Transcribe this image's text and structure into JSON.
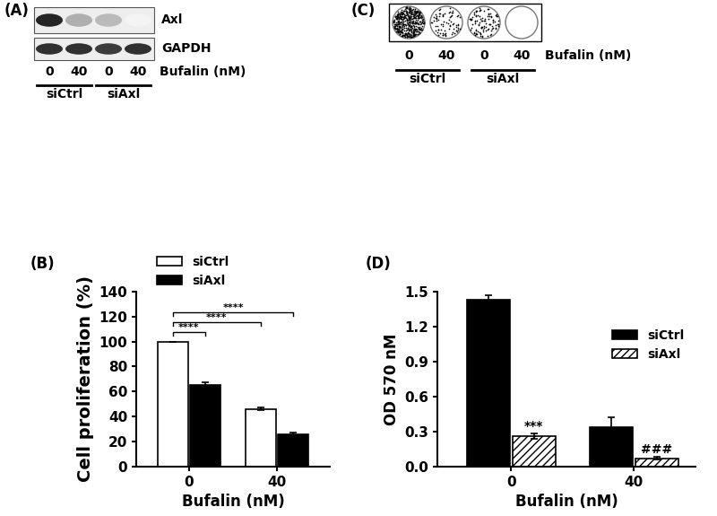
{
  "blot": {
    "title": "(A)",
    "rows": [
      {
        "name": "Axl",
        "intensity": [
          0.95,
          0.35,
          0.3,
          0.05
        ]
      },
      {
        "name": "GAPDH",
        "intensity": [
          0.9,
          0.9,
          0.85,
          0.9
        ]
      }
    ],
    "bufalin": [
      0,
      40,
      0,
      40
    ],
    "bufalin_label": "Bufalin (nM)",
    "groups": [
      "siCtrl",
      "siAxl"
    ]
  },
  "colony_assay": {
    "title": "(C)",
    "density": [
      0.9,
      0.15,
      0.2,
      0.0
    ],
    "bufalin": [
      0,
      40,
      0,
      40
    ],
    "bufalin_label": "Bufalin (nM)",
    "groups": [
      "siCtrl",
      "siAxl"
    ]
  },
  "chart_data": [
    {
      "type": "bar",
      "title": "(B)",
      "categories": [
        "0",
        "40"
      ],
      "x_label": "Bufalin (nM)",
      "y_label": "Cell proliferation (%)",
      "ylim": [
        0,
        140
      ],
      "yticks": [
        0,
        20,
        40,
        60,
        80,
        100,
        120,
        140
      ],
      "legend": "upper left",
      "series": [
        {
          "name": "siCtrl",
          "color": "#ffffff",
          "values": [
            100,
            46
          ],
          "errors": [
            0,
            1.2
          ]
        },
        {
          "name": "siAxl",
          "color": "#000000",
          "values": [
            65,
            26
          ],
          "errors": [
            2.5,
            1.5
          ]
        }
      ],
      "comparisons": [
        {
          "from": [
            "siCtrl",
            "0"
          ],
          "to": [
            "siAxl",
            "0"
          ],
          "label": "****"
        },
        {
          "from": [
            "siCtrl",
            "0"
          ],
          "to": [
            "siCtrl",
            "40"
          ],
          "label": "****"
        },
        {
          "from": [
            "siCtrl",
            "0"
          ],
          "to": [
            "siAxl",
            "40"
          ],
          "label": "****"
        }
      ]
    },
    {
      "type": "bar",
      "title": "(D)",
      "categories": [
        "0",
        "40"
      ],
      "x_label": "Bufalin (nM)",
      "y_label": "OD 570 nM",
      "ylim": [
        0,
        1.5
      ],
      "yticks": [
        {
          "value": 0,
          "label": "0.0"
        },
        0.3,
        0.6,
        0.9,
        1.2,
        1.5
      ],
      "legend": "upper right",
      "series": [
        {
          "name": "siCtrl",
          "color": "#000000",
          "values": [
            1.43,
            0.34
          ],
          "errors": [
            0.04,
            0.08
          ]
        },
        {
          "name": "siAxl",
          "color": "#ffffff",
          "values": [
            0.26,
            0.07
          ],
          "errors": [
            0.02,
            0.01
          ]
        }
      ],
      "annotations": [
        {
          "series": "siAxl",
          "category": "0",
          "text": "***"
        },
        {
          "series": "siAxl",
          "category": "40",
          "text": "###"
        }
      ]
    }
  ]
}
